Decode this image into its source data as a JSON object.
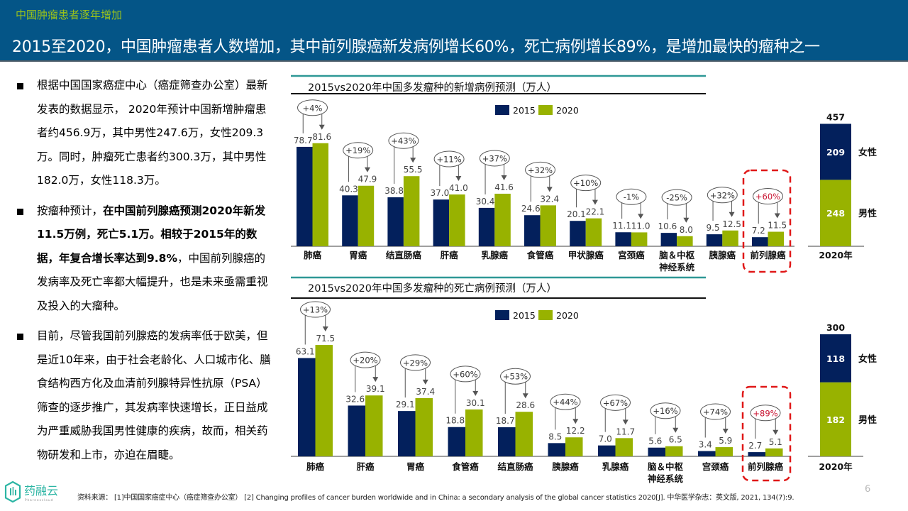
{
  "header": {
    "section": "中国肿瘤患者逐年增加",
    "title": "2015至2020，中国肿瘤患者人数增加，其中前列腺癌新发病例增长60%，死亡病例增长89%，是增加最快的瘤种之一"
  },
  "bullets": [
    {
      "parts": [
        {
          "text": "根据中国国家癌症中心（癌症筛查办公室）最新发表的数据显示， 2020年预计中国新增肿瘤患者约456.9万，其中男性247.6万，女性209.3万。同时，肿瘤死亡患者约300.3万，其中男性182.0万，女性118.3万。",
          "bold": false
        }
      ]
    },
    {
      "parts": [
        {
          "text": "按瘤种预计，",
          "bold": false
        },
        {
          "text": "在中国前列腺癌预测2020年新发11.5万例，死亡5.1万。相较于2015年的数据，年复合增长率达到9.8%",
          "bold": true
        },
        {
          "text": "，中国前列腺癌的发病率及死亡率都大幅提升，也是未来亟需重视及投入的大瘤种。",
          "bold": false
        }
      ]
    },
    {
      "parts": [
        {
          "text": "目前，尽管我国前列腺癌的发病率低于欧美，但是近10年来，由于社会老龄化、人口城市化、膳食结构西方化及血清前列腺特异性抗原（PSA）筛查的逐步推广，其发病率快速增长，正日益成为严重威胁我国男性健康的疾病，故而，相关药物研发和上市，亦迫在眉睫。",
          "bold": false
        }
      ]
    }
  ],
  "colors": {
    "y2015": "#03205c",
    "y2020": "#98b200",
    "highlight": "#e01818",
    "highlight_text": "#c8102e",
    "teal": "#2e9896",
    "header_bg": "#045587",
    "header_sub": "#9bc31a"
  },
  "chart_data": [
    {
      "type": "bar",
      "title": "2015vs2020年中国多发瘤种的新增病例预测（万人）",
      "legend": [
        "2015",
        "2020"
      ],
      "legend_position": "top-right",
      "categories": [
        "肺癌",
        "胃癌",
        "结直肠癌",
        "肝癌",
        "乳腺癌",
        "食管癌",
        "甲状腺癌",
        "宫颈癌",
        "脑＆中枢\n神经系统",
        "胰腺癌",
        "前列腺癌"
      ],
      "series": [
        {
          "name": "2015",
          "values": [
            78.7,
            40.3,
            38.8,
            37.0,
            30.4,
            24.6,
            20.1,
            11.1,
            10.6,
            9.5,
            7.2
          ]
        },
        {
          "name": "2020",
          "values": [
            81.6,
            47.9,
            55.5,
            41.0,
            41.6,
            32.4,
            22.1,
            11.0,
            8.0,
            12.5,
            11.5
          ]
        }
      ],
      "growth": [
        "+4%",
        "+19%",
        "+43%",
        "+11%",
        "+37%",
        "+32%",
        "+10%",
        "-1%",
        "-25%",
        "+32%",
        "+60%"
      ],
      "highlight_category": "前列腺癌",
      "total": {
        "label": "2020年",
        "total": 457,
        "segments": [
          {
            "name": "男性",
            "value": 248
          },
          {
            "name": "女性",
            "value": 209
          }
        ]
      }
    },
    {
      "type": "bar",
      "title": "2015vs2020年中国多发瘤种的死亡病例预测（万人）",
      "legend": [
        "2015",
        "2020"
      ],
      "legend_position": "top-right",
      "categories": [
        "肺癌",
        "肝癌",
        "胃癌",
        "食管癌",
        "结直肠癌",
        "胰腺癌",
        "乳腺癌",
        "脑＆中枢\n神经系统",
        "宫颈癌",
        "前列腺癌"
      ],
      "series": [
        {
          "name": "2015",
          "values": [
            63.1,
            32.6,
            29.1,
            18.8,
            18.7,
            8.5,
            7.0,
            5.6,
            3.4,
            2.7
          ]
        },
        {
          "name": "2020",
          "values": [
            71.5,
            39.1,
            37.4,
            30.1,
            28.6,
            12.2,
            11.7,
            6.5,
            5.9,
            5.1
          ]
        }
      ],
      "growth": [
        "+13%",
        "+20%",
        "+29%",
        "+60%",
        "+53%",
        "+44%",
        "+67%",
        "+16%",
        "+74%",
        "+89%"
      ],
      "highlight_category": "前列腺癌",
      "total": {
        "label": "2020年",
        "total": 300,
        "segments": [
          {
            "name": "男性",
            "value": 182
          },
          {
            "name": "女性",
            "value": 118
          }
        ]
      }
    }
  ],
  "footer": {
    "logo_text": "药融云",
    "logo_subtext": "Pharnexcloud",
    "source": "资料来源： [1]中国国家癌症中心（癌症筛查办公室） [2] Changing profiles of cancer burden worldwide and in China: a secondary analysis of the global cancer statistics 2020[J]. 中华医学杂志：英文版, 2021, 134(7):9.",
    "page": "6"
  }
}
